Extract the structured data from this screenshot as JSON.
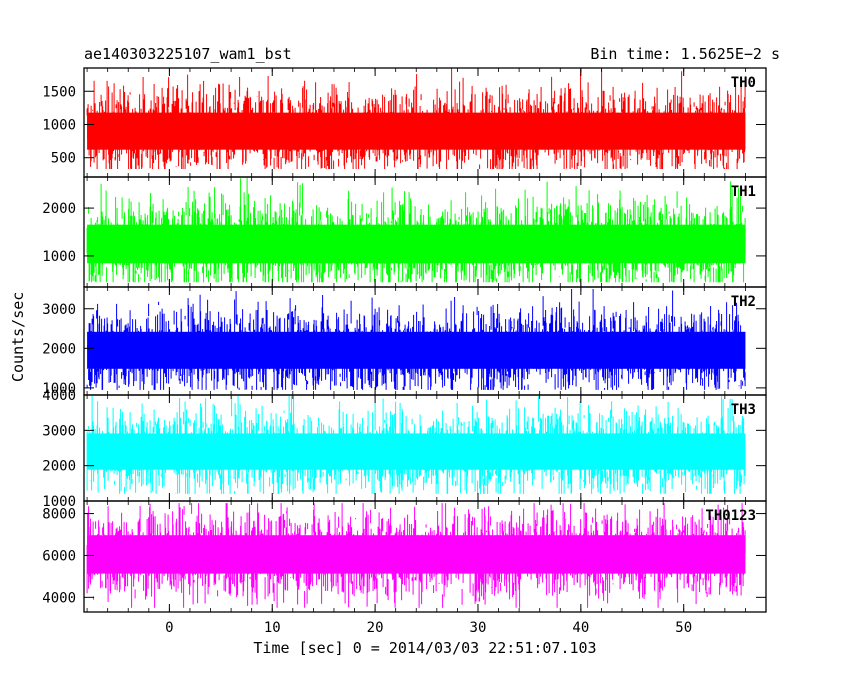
{
  "header": {
    "source_name": "ae140303225107_wam1_bst",
    "bin_time": "Bin time: 1.5625E−2 s"
  },
  "chart_data": {
    "type": "line",
    "xlabel": "Time [sec] 0 = 2014/03/03 22:51:07.103",
    "ylabel": "Counts/sec",
    "xlim": [
      -8.3,
      58
    ],
    "x_ticks": [
      0,
      10,
      20,
      30,
      40,
      50
    ],
    "x_range_data": [
      -8,
      56
    ],
    "panels": [
      {
        "name": "TH0",
        "color": "#ff0000",
        "ylim": [
          210,
          1850
        ],
        "y_ticks": [
          500,
          1000,
          1500
        ],
        "mean": 900,
        "low": 330,
        "high": 1850
      },
      {
        "name": "TH1",
        "color": "#00ff00",
        "ylim": [
          350,
          2650
        ],
        "y_ticks": [
          1000,
          2000
        ],
        "mean": 1250,
        "low": 450,
        "high": 2650
      },
      {
        "name": "TH2",
        "color": "#0000ff",
        "ylim": [
          820,
          3550
        ],
        "y_ticks": [
          1000,
          2000,
          3000
        ],
        "mean": 1950,
        "low": 950,
        "high": 3500
      },
      {
        "name": "TH3",
        "color": "#00ffff",
        "ylim": [
          1000,
          4000
        ],
        "y_ticks": [
          1000,
          2000,
          3000,
          4000
        ],
        "mean": 2400,
        "low": 1200,
        "high": 4000
      },
      {
        "name": "TH0123",
        "color": "#ff00ff",
        "ylim": [
          3300,
          8600
        ],
        "y_ticks": [
          4000,
          6000,
          8000
        ],
        "mean": 6050,
        "low": 3500,
        "high": 8500
      }
    ]
  }
}
